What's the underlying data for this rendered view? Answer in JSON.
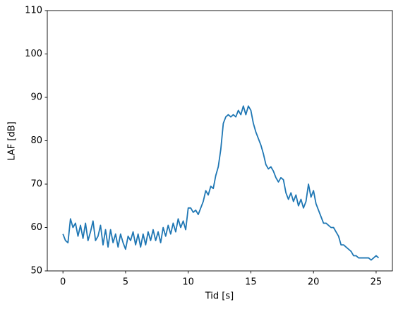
{
  "chart_data": {
    "type": "line",
    "x_label": "Tid [s]",
    "y_label": "LAF [dB]",
    "color": "#1f77b4",
    "xlim": [
      -1.25,
      26.3
    ],
    "ylim": [
      50,
      110
    ],
    "xticks": [
      0,
      5,
      10,
      15,
      20,
      25
    ],
    "yticks": [
      50,
      60,
      70,
      80,
      90,
      100,
      110
    ],
    "x": [
      0,
      0.2,
      0.4,
      0.6,
      0.8,
      1,
      1.2,
      1.4,
      1.6,
      1.8,
      2,
      2.2,
      2.4,
      2.6,
      2.8,
      3,
      3.2,
      3.4,
      3.6,
      3.8,
      4,
      4.2,
      4.4,
      4.6,
      4.8,
      5,
      5.2,
      5.4,
      5.6,
      5.8,
      6,
      6.2,
      6.4,
      6.6,
      6.8,
      7,
      7.2,
      7.4,
      7.6,
      7.8,
      8,
      8.2,
      8.4,
      8.6,
      8.8,
      9,
      9.2,
      9.4,
      9.6,
      9.8,
      10,
      10.2,
      10.4,
      10.6,
      10.8,
      11,
      11.2,
      11.4,
      11.6,
      11.8,
      12,
      12.2,
      12.4,
      12.6,
      12.8,
      13,
      13.2,
      13.4,
      13.6,
      13.8,
      14,
      14.2,
      14.4,
      14.6,
      14.8,
      15,
      15.2,
      15.4,
      15.6,
      15.8,
      16,
      16.2,
      16.4,
      16.6,
      16.8,
      17,
      17.2,
      17.4,
      17.6,
      17.8,
      18,
      18.2,
      18.4,
      18.6,
      18.8,
      19,
      19.2,
      19.4,
      19.6,
      19.8,
      20,
      20.2,
      20.4,
      20.6,
      20.8,
      21,
      21.2,
      21.4,
      21.6,
      21.8,
      22,
      22.2,
      22.4,
      22.6,
      22.8,
      23,
      23.2,
      23.4,
      23.6,
      23.8,
      24,
      24.2,
      24.4,
      24.6,
      24.8,
      25,
      25.2
    ],
    "values": [
      58.5,
      57,
      56.5,
      62,
      60,
      61,
      58,
      60.5,
      57.5,
      61,
      57,
      59,
      61.5,
      57,
      58,
      60.5,
      56,
      59.5,
      55.5,
      59.5,
      56.5,
      58.5,
      55.5,
      58.5,
      56.5,
      55,
      58,
      57,
      59,
      56,
      58.5,
      55.5,
      58.5,
      56,
      59,
      57,
      59.5,
      57,
      59,
      56.5,
      60,
      58,
      60.5,
      58.5,
      61,
      59,
      62,
      60,
      61.5,
      59.5,
      64.5,
      64.5,
      63.5,
      64,
      63,
      64.5,
      66,
      68.5,
      67.5,
      69.5,
      69,
      72,
      74,
      78,
      84,
      85.5,
      86,
      85.5,
      86,
      85.5,
      87,
      86,
      88,
      86,
      88,
      87,
      84,
      82,
      80.5,
      79,
      77,
      74.5,
      73.5,
      74,
      73,
      71.5,
      70.5,
      71.5,
      71,
      68,
      66.5,
      68,
      66,
      67.5,
      65,
      66.5,
      64.5,
      66,
      70,
      67,
      68.5,
      65.5,
      64,
      62.5,
      61,
      61,
      60.5,
      60,
      60,
      59,
      58,
      56,
      56,
      55.5,
      55,
      54.5,
      53.5,
      53.5,
      53,
      53,
      53,
      53,
      53,
      52.5,
      53,
      53.5,
      53
    ]
  }
}
